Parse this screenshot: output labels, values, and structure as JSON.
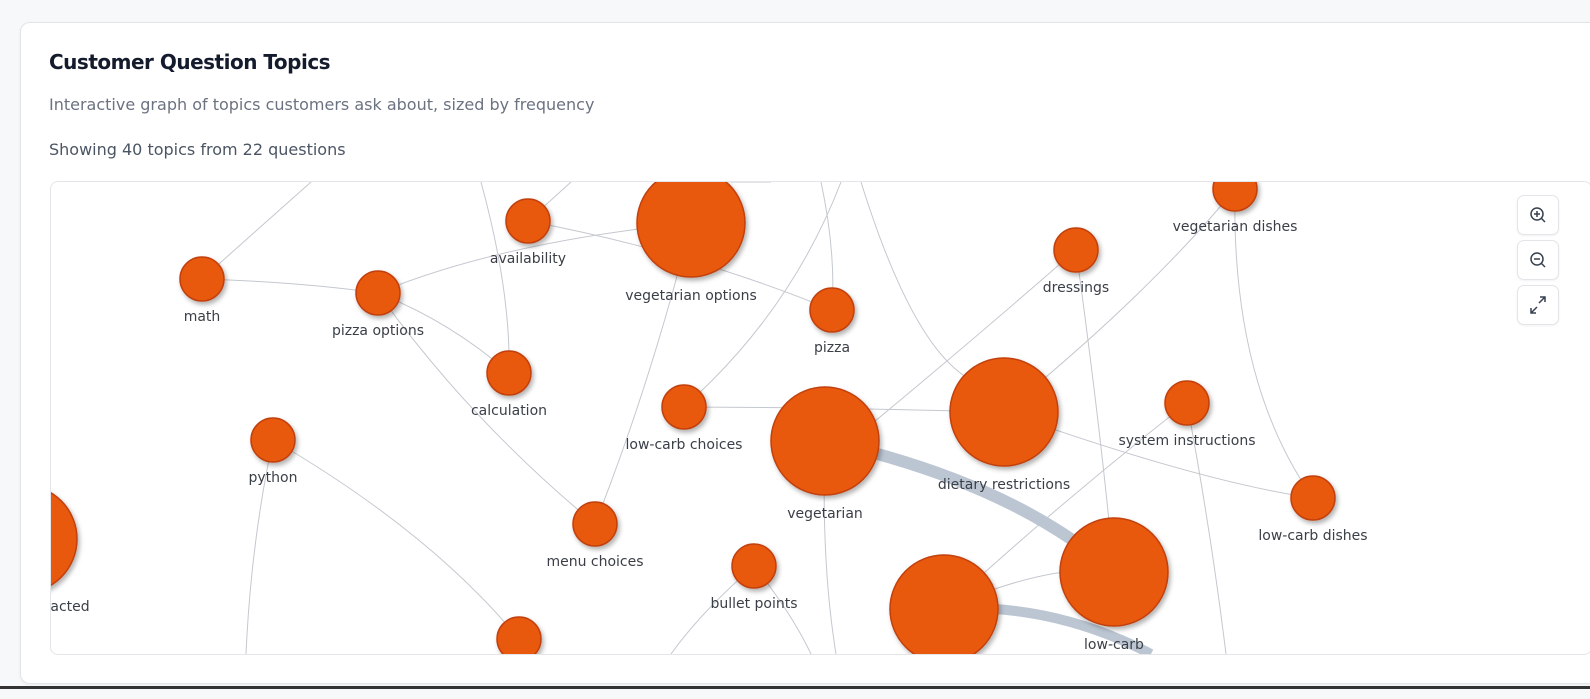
{
  "header": {
    "title": "Customer Question Topics",
    "subtitle": "Interactive graph of topics customers ask about, sized by frequency"
  },
  "summary": "Showing 40 topics from 22 questions",
  "graph": {
    "nodes": [
      {
        "label": "math"
      },
      {
        "label": "pizza options"
      },
      {
        "label": "availability"
      },
      {
        "label": "vegetarian options"
      },
      {
        "label": "pizza"
      },
      {
        "label": "calculation"
      },
      {
        "label": "low-carb choices"
      },
      {
        "label": "vegetarian"
      },
      {
        "label": "dietary restrictions"
      },
      {
        "label": "dressings"
      },
      {
        "label": "vegetarian dishes"
      },
      {
        "label": "system instructions"
      },
      {
        "label": "low-carb dishes"
      },
      {
        "label": "python"
      },
      {
        "label": "menu choices"
      },
      {
        "label": "bullet points"
      },
      {
        "label": "low-carb"
      },
      {
        "label": "acted"
      }
    ]
  }
}
